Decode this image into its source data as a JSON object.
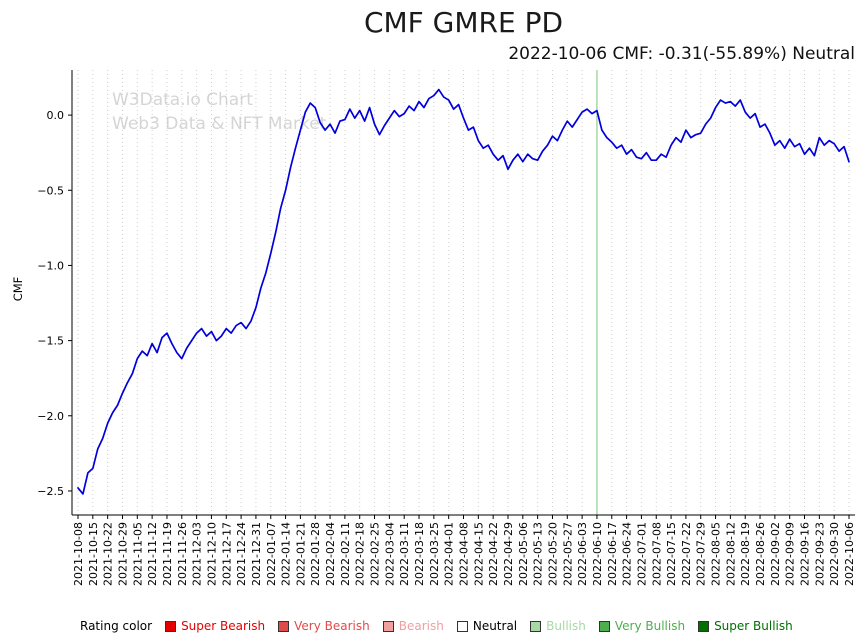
{
  "title": "CMF GMRE PD",
  "subtitle": "2022-10-06 CMF: -0.31(-55.89%) Neutral",
  "watermark": {
    "line1": "W3Data.io Chart",
    "line2": "Web3 Data & NFT Market",
    "color": "#d5d5d5"
  },
  "legend": {
    "prefix": "Rating color",
    "items": [
      {
        "label": "Super Bearish",
        "color": "#e50000",
        "text_color": "#e50000"
      },
      {
        "label": "Very Bearish",
        "color": "#e04b4b",
        "text_color": "#e04b4b"
      },
      {
        "label": "Bearish",
        "color": "#f0a0a0",
        "text_color": "#f0a0a0"
      },
      {
        "label": "Neutral",
        "color": "#ffffff",
        "text_color": "#000000"
      },
      {
        "label": "Bullish",
        "color": "#a6d9a6",
        "text_color": "#a6d9a6"
      },
      {
        "label": "Very Bullish",
        "color": "#4daf4d",
        "text_color": "#4daf4d"
      },
      {
        "label": "Super Bullish",
        "color": "#007000",
        "text_color": "#007000"
      }
    ]
  },
  "chart_data": {
    "type": "line",
    "title": "CMF GMRE PD",
    "xlabel": "",
    "ylabel": "CMF",
    "ylim": [
      -2.66,
      0.3
    ],
    "grid": "vertical-dotted",
    "line_color": "#0000dd",
    "gridline_color": "#c9c9c9",
    "y_ticks": [
      0.0,
      -0.5,
      -1.0,
      -1.5,
      -2.0,
      -2.5
    ],
    "x_tick_labels": [
      "2021-10-08",
      "2021-10-15",
      "2021-10-22",
      "2021-10-29",
      "2021-11-05",
      "2021-11-12",
      "2021-11-19",
      "2021-11-26",
      "2021-12-03",
      "2021-12-10",
      "2021-12-17",
      "2021-12-24",
      "2021-12-31",
      "2022-01-07",
      "2022-01-14",
      "2022-01-21",
      "2022-01-28",
      "2022-02-04",
      "2022-02-11",
      "2022-02-18",
      "2022-02-25",
      "2022-03-04",
      "2022-03-11",
      "2022-03-18",
      "2022-03-25",
      "2022-04-01",
      "2022-04-08",
      "2022-04-15",
      "2022-04-22",
      "2022-04-29",
      "2022-05-06",
      "2022-05-13",
      "2022-05-20",
      "2022-05-27",
      "2022-06-03",
      "2022-06-10",
      "2022-06-17",
      "2022-06-24",
      "2022-07-01",
      "2022-07-08",
      "2022-07-15",
      "2022-07-22",
      "2022-07-29",
      "2022-08-05",
      "2022-08-12",
      "2022-08-19",
      "2022-08-26",
      "2022-09-02",
      "2022-09-09",
      "2022-09-16",
      "2022-09-23",
      "2022-09-30",
      "2022-10-06"
    ],
    "marker_line": {
      "x": "2022-06-10",
      "color": "#9fd49f"
    },
    "points_per_week": 3,
    "values": [
      -2.48,
      -2.52,
      -2.38,
      -2.35,
      -2.22,
      -2.15,
      -2.05,
      -1.98,
      -1.93,
      -1.85,
      -1.78,
      -1.72,
      -1.62,
      -1.57,
      -1.6,
      -1.52,
      -1.58,
      -1.48,
      -1.45,
      -1.52,
      -1.58,
      -1.62,
      -1.55,
      -1.5,
      -1.45,
      -1.42,
      -1.47,
      -1.44,
      -1.5,
      -1.47,
      -1.42,
      -1.45,
      -1.4,
      -1.38,
      -1.42,
      -1.37,
      -1.28,
      -1.15,
      -1.05,
      -0.92,
      -0.78,
      -0.62,
      -0.5,
      -0.35,
      -0.22,
      -0.1,
      0.02,
      0.08,
      0.05,
      -0.05,
      -0.1,
      -0.06,
      -0.12,
      -0.04,
      -0.03,
      0.04,
      -0.02,
      0.03,
      -0.04,
      0.05,
      -0.06,
      -0.13,
      -0.07,
      -0.02,
      0.03,
      -0.01,
      0.01,
      0.06,
      0.03,
      0.09,
      0.05,
      0.11,
      0.13,
      0.17,
      0.12,
      0.1,
      0.04,
      0.07,
      -0.02,
      -0.1,
      -0.08,
      -0.17,
      -0.22,
      -0.2,
      -0.26,
      -0.3,
      -0.27,
      -0.36,
      -0.3,
      -0.26,
      -0.31,
      -0.26,
      -0.29,
      -0.3,
      -0.24,
      -0.2,
      -0.14,
      -0.17,
      -0.1,
      -0.04,
      -0.08,
      -0.03,
      0.02,
      0.04,
      0.01,
      0.03,
      -0.1,
      -0.15,
      -0.18,
      -0.22,
      -0.2,
      -0.26,
      -0.23,
      -0.28,
      -0.29,
      -0.25,
      -0.3,
      -0.3,
      -0.26,
      -0.28,
      -0.2,
      -0.15,
      -0.18,
      -0.1,
      -0.15,
      -0.13,
      -0.12,
      -0.06,
      -0.02,
      0.05,
      0.1,
      0.08,
      0.09,
      0.06,
      0.1,
      0.02,
      -0.02,
      0.01,
      -0.08,
      -0.06,
      -0.12,
      -0.2,
      -0.17,
      -0.22,
      -0.16,
      -0.21,
      -0.19,
      -0.26,
      -0.22,
      -0.27,
      -0.15,
      -0.2,
      -0.17,
      -0.19,
      -0.24,
      -0.21,
      -0.31
    ]
  }
}
